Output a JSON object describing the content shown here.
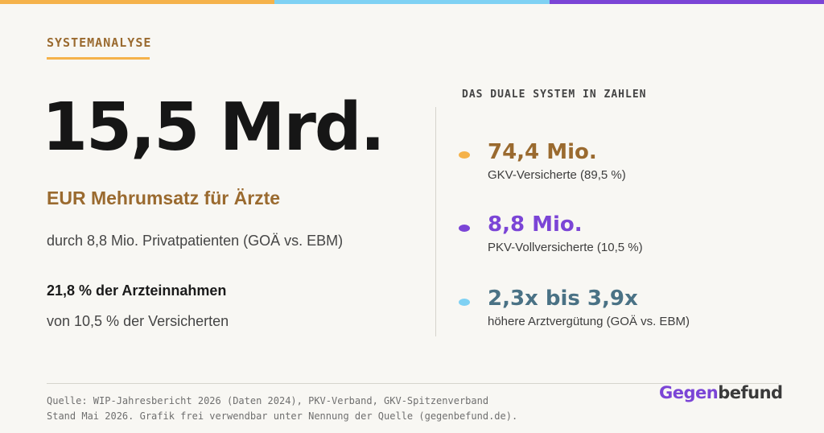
{
  "colors": {
    "orange": "#f5b24a",
    "blue": "#7fd1f3",
    "purple": "#7b45d6",
    "gold_text": "#9a6a2f",
    "teal_text": "#4a7285"
  },
  "kicker": "SYSTEMANALYSE",
  "headline": {
    "value": "15,5 Mrd.",
    "subtitle": "EUR Mehrumsatz für Ärzte",
    "description": "durch 8,8 Mio. Privatpatienten (GOÄ vs. EBM)",
    "share_strong": "21,8 % der Arzteinnahmen",
    "share_desc": "von 10,5 % der Versicherten"
  },
  "panel": {
    "title": "DAS DUALE SYSTEM IN ZAHLEN",
    "stats": [
      {
        "value": "74,4 Mio.",
        "label": "GKV-Versicherte (89,5 %)"
      },
      {
        "value": "8,8 Mio.",
        "label": "PKV-Vollversicherte (10,5 %)"
      },
      {
        "value": "2,3x bis 3,9x",
        "label": "höhere Arztvergütung (GOÄ vs. EBM)"
      }
    ]
  },
  "footer": {
    "source_line1": "Quelle: WIP-Jahresbericht 2026 (Daten 2024), PKV-Verband, GKV-Spitzenverband",
    "source_line2": "Stand Mai 2026. Grafik frei verwendbar unter Nennung der Quelle (gegenbefund.de).",
    "logo_part1": "Gegen",
    "logo_part2": "befund"
  }
}
